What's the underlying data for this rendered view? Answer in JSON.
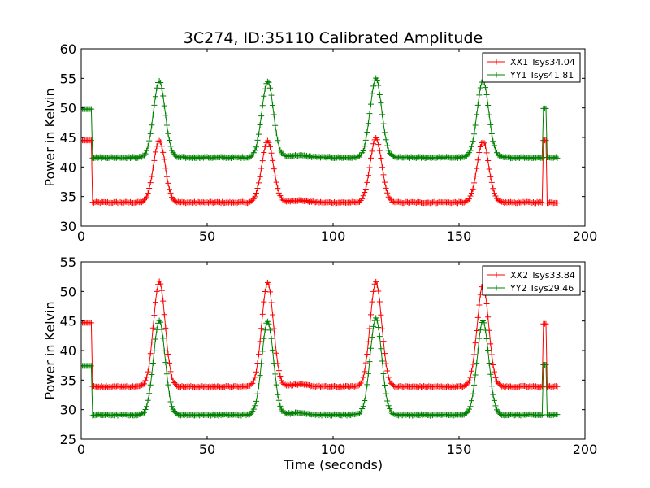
{
  "chart_data": [
    {
      "type": "line",
      "title": "3C274, ID:35110 Calibrated Amplitude",
      "xlabel": "",
      "ylabel": "Power in Kelvin",
      "xlim": [
        0,
        200
      ],
      "ylim": [
        30,
        60
      ],
      "xticks": [
        0,
        50,
        100,
        150,
        200
      ],
      "yticks": [
        30,
        35,
        40,
        45,
        50,
        55,
        60
      ],
      "grid": false,
      "legend_position": "top-right",
      "marker": "plus",
      "series": [
        {
          "name": "XX1 Tsys34.04",
          "color": "#ff0000",
          "baseline": 34.0,
          "peaks": [
            {
              "x": 31,
              "y": 44.5
            },
            {
              "x": 74,
              "y": 44.4
            },
            {
              "x": 117,
              "y": 44.8
            },
            {
              "x": 159.5,
              "y": 44.4
            }
          ],
          "calibration_segments": [
            {
              "x_start": 0,
              "x_end": 4,
              "value": 44.5
            },
            {
              "x_start": 183.5,
              "x_end": 184.5,
              "value": 44.5
            }
          ],
          "x_range": [
            0,
            189
          ]
        },
        {
          "name": "YY1 Tsys41.81",
          "color": "#008000",
          "baseline": 41.6,
          "peaks": [
            {
              "x": 31,
              "y": 54.5
            },
            {
              "x": 74,
              "y": 54.5
            },
            {
              "x": 117,
              "y": 54.9
            },
            {
              "x": 159.5,
              "y": 54.6
            }
          ],
          "calibration_segments": [
            {
              "x_start": 0,
              "x_end": 4,
              "value": 49.8
            },
            {
              "x_start": 183.5,
              "x_end": 184.5,
              "value": 49.9
            }
          ],
          "x_range": [
            0,
            189
          ]
        }
      ]
    },
    {
      "type": "line",
      "title": "",
      "xlabel": "Time (seconds)",
      "ylabel": "Power in Kelvin",
      "xlim": [
        0,
        200
      ],
      "ylim": [
        25,
        55
      ],
      "xticks": [
        0,
        50,
        100,
        150,
        200
      ],
      "yticks": [
        25,
        30,
        35,
        40,
        45,
        50,
        55
      ],
      "grid": false,
      "legend_position": "top-right",
      "marker": "plus",
      "series": [
        {
          "name": "XX2 Tsys33.84",
          "color": "#ff0000",
          "baseline": 33.9,
          "peaks": [
            {
              "x": 31,
              "y": 51.7
            },
            {
              "x": 74,
              "y": 51.6
            },
            {
              "x": 117,
              "y": 51.6
            },
            {
              "x": 159.5,
              "y": 51.1
            }
          ],
          "calibration_segments": [
            {
              "x_start": 0,
              "x_end": 4,
              "value": 44.7
            },
            {
              "x_start": 183.5,
              "x_end": 184.5,
              "value": 44.5
            }
          ],
          "x_range": [
            0,
            189
          ]
        },
        {
          "name": "YY2 Tsys29.46",
          "color": "#008000",
          "baseline": 29.1,
          "peaks": [
            {
              "x": 31,
              "y": 45.1
            },
            {
              "x": 74,
              "y": 45.0
            },
            {
              "x": 117,
              "y": 45.5
            },
            {
              "x": 159.5,
              "y": 45.0
            }
          ],
          "calibration_segments": [
            {
              "x_start": 0,
              "x_end": 4,
              "value": 37.4
            },
            {
              "x_start": 183.5,
              "x_end": 184.5,
              "value": 37.6
            }
          ],
          "x_range": [
            0,
            189
          ]
        }
      ]
    }
  ]
}
